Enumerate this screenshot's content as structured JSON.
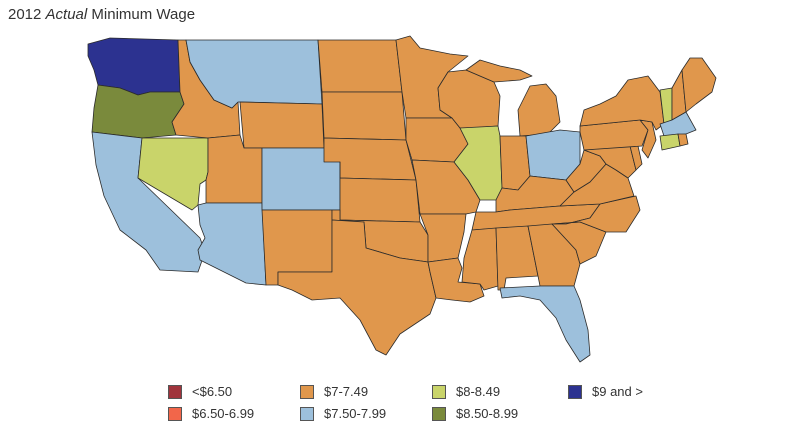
{
  "title_prefix": "2012 ",
  "title_emph": "Actual",
  "title_suffix": " Minimum Wage",
  "colors": {
    "lt650": "#a0343c",
    "r650": "#f2664a",
    "r700": "#e0974c",
    "r750": "#9dc0dc",
    "r800": "#c9d46a",
    "r850": "#7a8a3c",
    "r900": "#2c3290"
  },
  "legend": [
    {
      "key": "lt650",
      "label": "<$6.50"
    },
    {
      "key": "r650",
      "label": "$6.50-6.99"
    },
    {
      "key": "r700",
      "label": "$7-7.49"
    },
    {
      "key": "r750",
      "label": "$7.50-7.99"
    },
    {
      "key": "r800",
      "label": "$8-8.49"
    },
    {
      "key": "r850",
      "label": "$8.50-8.99"
    },
    {
      "key": "r900",
      "label": "$9 and >"
    }
  ],
  "states": {
    "WA": "r900",
    "OR": "r850",
    "CA": "r750",
    "NV": "r800",
    "ID": "r700",
    "MT": "r750",
    "WY": "r700",
    "UT": "r700",
    "AZ": "r750",
    "CO": "r750",
    "NM": "r700",
    "ND": "r700",
    "SD": "r700",
    "NE": "r700",
    "KS": "r700",
    "OK": "r700",
    "TX": "r700",
    "MN": "r700",
    "IA": "r700",
    "MO": "r700",
    "AR": "r700",
    "LA": "r700",
    "WI": "r700",
    "IL": "r800",
    "MI": "r700",
    "IN": "r700",
    "OH": "r750",
    "KY": "r700",
    "TN": "r700",
    "MS": "r700",
    "AL": "r700",
    "GA": "r700",
    "FL": "r750",
    "SC": "r700",
    "NC": "r700",
    "VA": "r700",
    "WV": "r700",
    "MD": "r700",
    "DE": "r700",
    "PA": "r700",
    "NJ": "r700",
    "NY": "r700",
    "CT": "r800",
    "RI": "r700",
    "MA": "r750",
    "VT": "r800",
    "NH": "r700",
    "ME": "r700"
  }
}
